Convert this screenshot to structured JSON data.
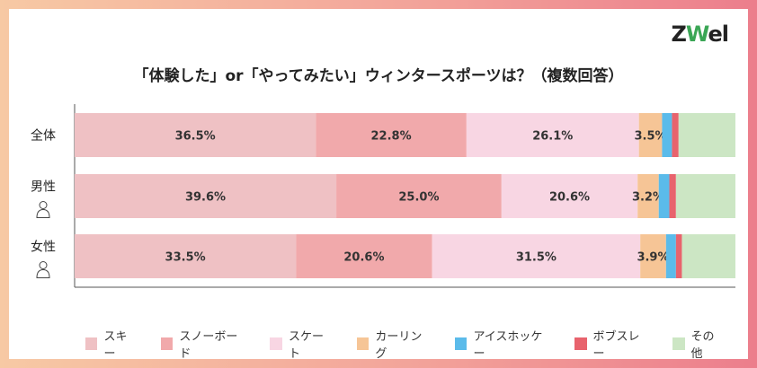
{
  "logo": {
    "text_z": "Z",
    "text_w": "W",
    "text_el": "el"
  },
  "chart_data": {
    "type": "bar",
    "orientation": "horizontal-stacked",
    "title": "「体験した」or「やってみたい」ウィンタースポーツは？（複数回答）",
    "categories": [
      "全体",
      "男性",
      "女性"
    ],
    "category_icons": [
      null,
      "man-icon",
      "woman-icon"
    ],
    "series": [
      {
        "name": "スキー",
        "color": "#efc1c4",
        "values": [
          36.5,
          39.6,
          33.5
        ]
      },
      {
        "name": "スノーボード",
        "color": "#f1a9ab",
        "values": [
          22.8,
          25.0,
          20.6
        ]
      },
      {
        "name": "スケート",
        "color": "#f8d6e3",
        "values": [
          26.1,
          20.6,
          31.5
        ]
      },
      {
        "name": "カーリング",
        "color": "#f6c596",
        "values": [
          3.5,
          3.2,
          3.9
        ]
      },
      {
        "name": "アイスホッケー",
        "color": "#5bbbea",
        "values": [
          1.5,
          1.6,
          1.5
        ]
      },
      {
        "name": "ボブスレー",
        "color": "#e8636d",
        "values": [
          1.0,
          1.0,
          0.9
        ]
      },
      {
        "name": "その他",
        "color": "#cce6c4",
        "values": [
          8.6,
          9.0,
          8.1
        ]
      }
    ],
    "data_labels": [
      [
        "36.5%",
        "22.8%",
        "26.1%",
        "3.5%",
        "",
        "",
        ""
      ],
      [
        "39.6%",
        "25.0%",
        "20.6%",
        "3.2%",
        "",
        "",
        ""
      ],
      [
        "33.5%",
        "20.6%",
        "31.5%",
        "3.9%",
        "",
        "",
        ""
      ]
    ],
    "xlim": [
      0,
      100
    ],
    "grid": false,
    "legend_position": "bottom"
  }
}
